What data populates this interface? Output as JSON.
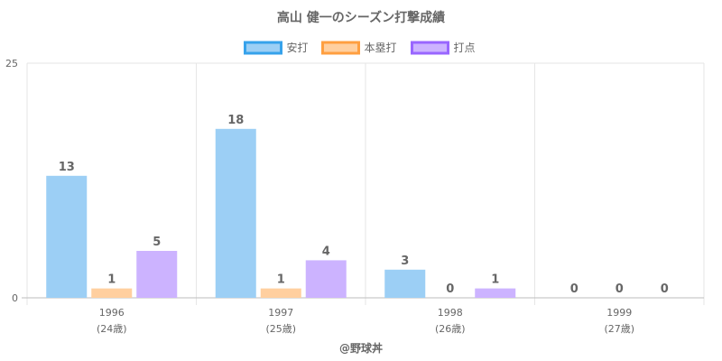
{
  "chart_data": {
    "type": "bar",
    "title": "高山 健一のシーズン打撃成績",
    "categories": [
      "1996",
      "1997",
      "1998",
      "1999"
    ],
    "category_sublabels": [
      "(24歳)",
      "(25歳)",
      "(26歳)",
      "(27歳)"
    ],
    "series": [
      {
        "name": "安打",
        "values": [
          13,
          18,
          3,
          0
        ],
        "color": "#9ccff5",
        "border": "#36a2eb"
      },
      {
        "name": "本塁打",
        "values": [
          1,
          1,
          0,
          0
        ],
        "color": "#ffcf9f",
        "border": "#ff9f40"
      },
      {
        "name": "打点",
        "values": [
          5,
          4,
          1,
          0
        ],
        "color": "#ccb3ff",
        "border": "#9966ff"
      }
    ],
    "ylim": [
      0,
      25
    ],
    "yticks": [
      "0",
      "25"
    ],
    "xlabel": "@野球丼",
    "ylabel": "",
    "legend_position": "top",
    "grid": true
  }
}
